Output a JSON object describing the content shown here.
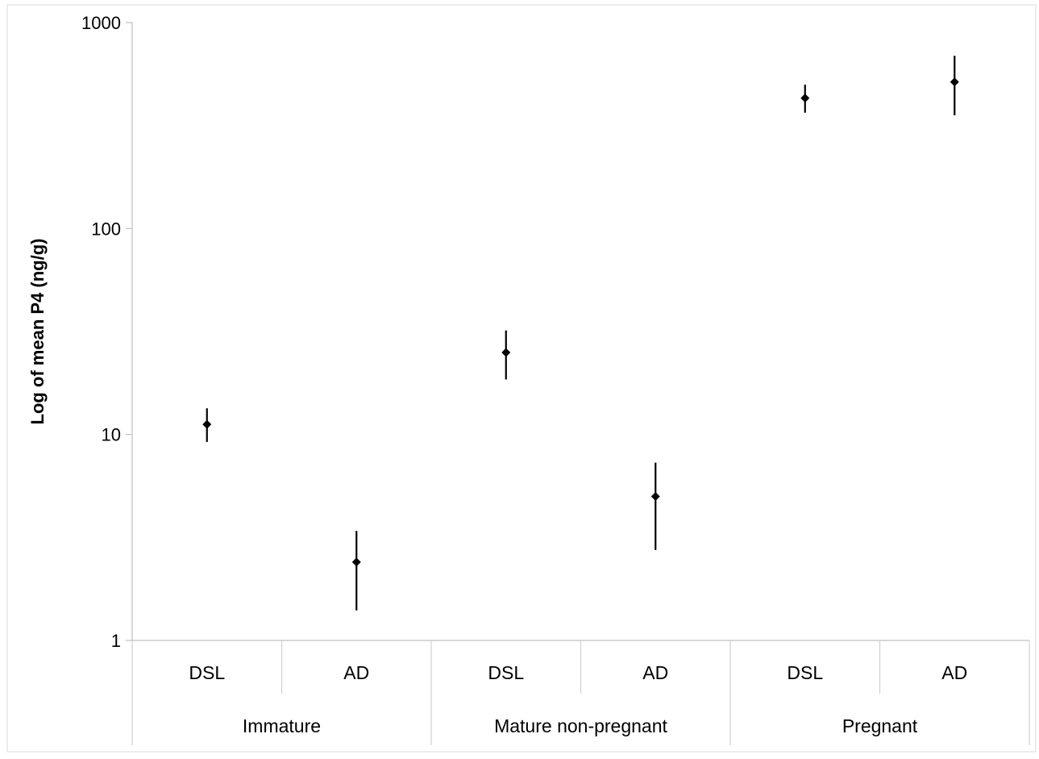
{
  "chart_data": {
    "type": "scatter",
    "ylabel": "Log of mean P4 (ng/g)",
    "yscale": "log",
    "ylim": [
      1,
      1000
    ],
    "yticks": [
      "1",
      "10",
      "100",
      "1000"
    ],
    "groups": [
      {
        "label": "Immature",
        "categories": [
          "DSL",
          "AD"
        ]
      },
      {
        "label": "Mature non-pregnant",
        "categories": [
          "DSL",
          "AD"
        ]
      },
      {
        "label": "Pregnant",
        "categories": [
          "DSL",
          "AD"
        ]
      }
    ],
    "points": [
      {
        "group": "Immature",
        "category": "DSL",
        "mean": 11.2,
        "lower": 9.2,
        "upper": 13.4
      },
      {
        "group": "Immature",
        "category": "AD",
        "mean": 2.4,
        "lower": 1.4,
        "upper": 3.4
      },
      {
        "group": "Mature non-pregnant",
        "category": "DSL",
        "mean": 25,
        "lower": 18.5,
        "upper": 32
      },
      {
        "group": "Mature non-pregnant",
        "category": "AD",
        "mean": 5,
        "lower": 2.75,
        "upper": 7.3
      },
      {
        "group": "Pregnant",
        "category": "DSL",
        "mean": 430,
        "lower": 365,
        "upper": 500
      },
      {
        "group": "Pregnant",
        "category": "AD",
        "mean": 515,
        "lower": 355,
        "upper": 690
      }
    ],
    "grid": false,
    "legend": "none",
    "marker_color": "#000000"
  }
}
